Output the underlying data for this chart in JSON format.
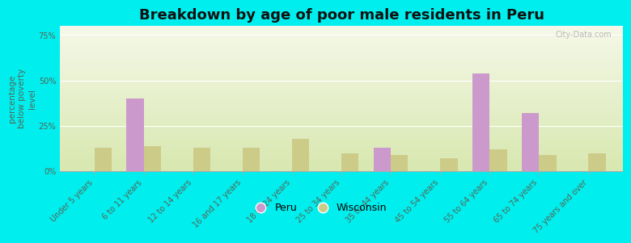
{
  "title": "Breakdown by age of poor male residents in Peru",
  "categories": [
    "Under 5 years",
    "6 to 11 years",
    "12 to 14 years",
    "16 and 17 years",
    "18 to 24 years",
    "25 to 34 years",
    "35 to 44 years",
    "45 to 54 years",
    "55 to 64 years",
    "65 to 74 years",
    "75 years and over"
  ],
  "peru_values": [
    0,
    40,
    0,
    0,
    0,
    0,
    13,
    0,
    54,
    32,
    0
  ],
  "wisconsin_values": [
    13,
    14,
    13,
    13,
    18,
    10,
    9,
    7,
    12,
    9,
    10
  ],
  "peru_color": "#cc99cc",
  "wisconsin_color": "#cccc88",
  "background_color": "#00eeee",
  "ylabel": "percentage\nbelow poverty\nlevel",
  "yticks": [
    0,
    25,
    50,
    75
  ],
  "ytick_labels": [
    "0%",
    "25%",
    "50%",
    "75%"
  ],
  "ylim": [
    0,
    80
  ],
  "bar_width": 0.35,
  "title_fontsize": 13,
  "axis_label_fontsize": 7.5,
  "tick_label_fontsize": 7,
  "legend_fontsize": 9,
  "watermark": "City-Data.com"
}
